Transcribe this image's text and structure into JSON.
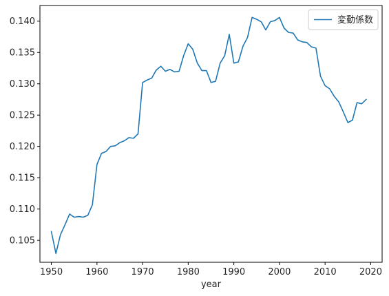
{
  "chart_data": {
    "type": "line",
    "xlabel": "year",
    "ylabel": "",
    "xlim": [
      1947.5,
      2022.5
    ],
    "ylim": [
      0.1015,
      0.1425
    ],
    "xticks": [
      1950,
      1960,
      1970,
      1980,
      1990,
      2000,
      2010,
      2020
    ],
    "yticks": [
      0.105,
      0.11,
      0.115,
      0.12,
      0.125,
      0.13,
      0.135,
      0.14
    ],
    "ytick_labels": [
      "0.105",
      "0.110",
      "0.115",
      "0.120",
      "0.125",
      "0.130",
      "0.135",
      "0.140"
    ],
    "grid": false,
    "legend_position": "top-right",
    "series": [
      {
        "name": "変動係数",
        "color": "#1f77b4",
        "x": [
          1950,
          1951,
          1952,
          1953,
          1954,
          1955,
          1956,
          1957,
          1958,
          1959,
          1960,
          1961,
          1962,
          1963,
          1964,
          1965,
          1966,
          1967,
          1968,
          1969,
          1970,
          1971,
          1972,
          1973,
          1974,
          1975,
          1976,
          1977,
          1978,
          1979,
          1980,
          1981,
          1982,
          1983,
          1984,
          1985,
          1986,
          1987,
          1988,
          1989,
          1990,
          1991,
          1992,
          1993,
          1994,
          1995,
          1996,
          1997,
          1998,
          1999,
          2000,
          2001,
          2002,
          2003,
          2004,
          2005,
          2006,
          2007,
          2008,
          2009,
          2010,
          2011,
          2012,
          2013,
          2014,
          2015,
          2016,
          2017,
          2018,
          2019
        ],
        "values": [
          0.1064,
          0.1029,
          0.1059,
          0.1075,
          0.1092,
          0.1087,
          0.1088,
          0.1087,
          0.109,
          0.1107,
          0.1171,
          0.1189,
          0.1192,
          0.12,
          0.1201,
          0.1206,
          0.1209,
          0.1214,
          0.1213,
          0.122,
          0.1302,
          0.1306,
          0.1309,
          0.1322,
          0.1328,
          0.132,
          0.1323,
          0.1319,
          0.132,
          0.1345,
          0.1364,
          0.1355,
          0.1333,
          0.1321,
          0.1321,
          0.1302,
          0.1304,
          0.1333,
          0.1345,
          0.1379,
          0.1333,
          0.1335,
          0.136,
          0.1374,
          0.1406,
          0.1403,
          0.1399,
          0.1386,
          0.1399,
          0.1401,
          0.1406,
          0.1389,
          0.1382,
          0.1381,
          0.137,
          0.1367,
          0.1366,
          0.1359,
          0.1357,
          0.1312,
          0.1297,
          0.1292,
          0.128,
          0.1271,
          0.1255,
          0.1238,
          0.1242,
          0.127,
          0.1268,
          0.1275
        ]
      }
    ]
  }
}
